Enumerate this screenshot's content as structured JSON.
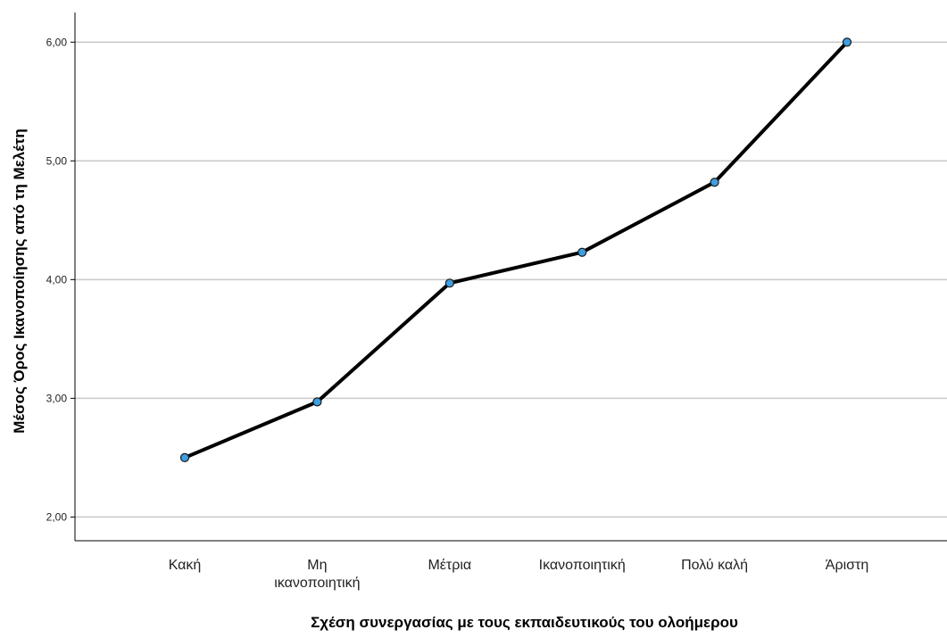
{
  "chart_data": {
    "type": "line",
    "categories": [
      [
        "Κακή"
      ],
      [
        "Μη",
        "ικανοποιητική"
      ],
      [
        "Μέτρια"
      ],
      [
        "Ικανοποιητική"
      ],
      [
        "Πολύ καλή"
      ],
      [
        "Άριστη"
      ]
    ],
    "values": [
      2.5,
      2.97,
      3.97,
      4.23,
      4.82,
      6.0
    ],
    "xlabel": "Σχέση συνεργασίας με τους εκπαιδευτικούς του ολοήμερου",
    "ylabel": "Μέσος Όρος Ικανοποίησης από τη Μελέτη",
    "ylim": [
      1.8,
      6.25
    ],
    "yticks": [
      2,
      3,
      4,
      5,
      6
    ],
    "ytick_labels": [
      "2,00",
      "3,00",
      "4,00",
      "5,00",
      "6,00"
    ],
    "grid": "horizontal",
    "line_color": "#000000",
    "marker_color": "#3d9ee0",
    "grid_color": "#c8c8c8"
  }
}
